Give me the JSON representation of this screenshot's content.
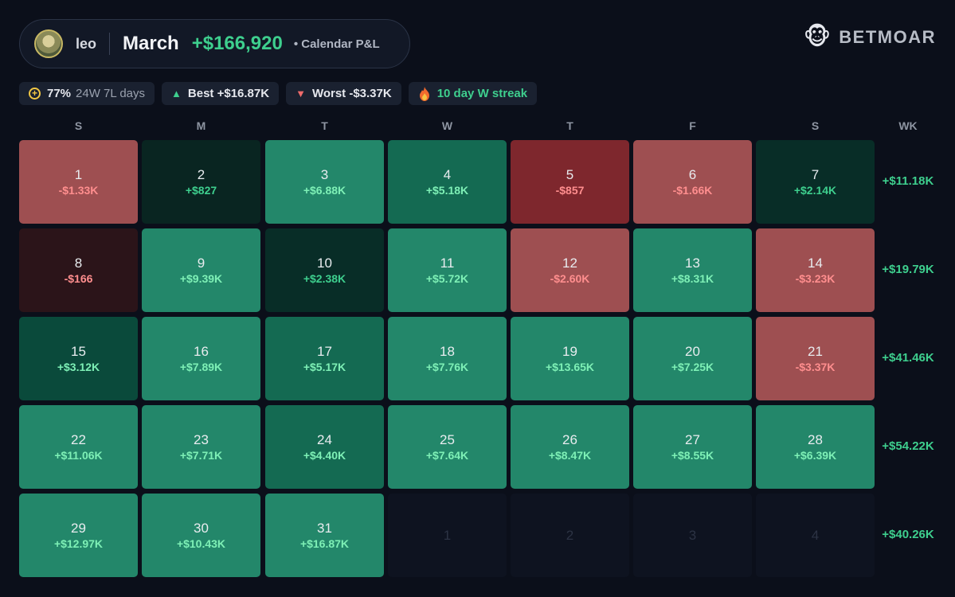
{
  "header": {
    "username": "leo",
    "month": "March",
    "total": "+$166,920",
    "subtitle": "• Calendar P&L"
  },
  "brand": {
    "name": "BETMOAR",
    "icon": "🐵"
  },
  "stats": {
    "winrate_pct": "77%",
    "record": "24W 7L days",
    "best": "Best +$16.87K",
    "worst": "Worst -$3.37K",
    "streak": "10 day W streak"
  },
  "weekdays": [
    "S",
    "M",
    "T",
    "W",
    "T",
    "F",
    "S"
  ],
  "wk_label": "WK",
  "weeks": [
    {
      "total": "+$11.18K",
      "days": [
        {
          "day": "1",
          "pnl": "-$1.33K",
          "tone": "neg",
          "color": "#9e4f51"
        },
        {
          "day": "2",
          "pnl": "+$827",
          "tone": "dim",
          "color": "#092521"
        },
        {
          "day": "3",
          "pnl": "+$6.88K",
          "tone": "pos",
          "color": "#23876a"
        },
        {
          "day": "4",
          "pnl": "+$5.18K",
          "tone": "pos",
          "color": "#146a52"
        },
        {
          "day": "5",
          "pnl": "-$857",
          "tone": "neg",
          "color": "#7e272d"
        },
        {
          "day": "6",
          "pnl": "-$1.66K",
          "tone": "neg",
          "color": "#9e4f51"
        },
        {
          "day": "7",
          "pnl": "+$2.14K",
          "tone": "dim",
          "color": "#082d27"
        }
      ]
    },
    {
      "total": "+$19.79K",
      "days": [
        {
          "day": "8",
          "pnl": "-$166",
          "tone": "neg",
          "color": "#2b1419"
        },
        {
          "day": "9",
          "pnl": "+$9.39K",
          "tone": "pos",
          "color": "#23876a"
        },
        {
          "day": "10",
          "pnl": "+$2.38K",
          "tone": "dim",
          "color": "#082d27"
        },
        {
          "day": "11",
          "pnl": "+$5.72K",
          "tone": "pos",
          "color": "#23876a"
        },
        {
          "day": "12",
          "pnl": "-$2.60K",
          "tone": "neg",
          "color": "#9e4f51"
        },
        {
          "day": "13",
          "pnl": "+$8.31K",
          "tone": "pos",
          "color": "#23876a"
        },
        {
          "day": "14",
          "pnl": "-$3.23K",
          "tone": "neg",
          "color": "#9e4f51"
        }
      ]
    },
    {
      "total": "+$41.46K",
      "days": [
        {
          "day": "15",
          "pnl": "+$3.12K",
          "tone": "pos",
          "color": "#0a4a3b"
        },
        {
          "day": "16",
          "pnl": "+$7.89K",
          "tone": "pos",
          "color": "#23876a"
        },
        {
          "day": "17",
          "pnl": "+$5.17K",
          "tone": "pos",
          "color": "#146a52"
        },
        {
          "day": "18",
          "pnl": "+$7.76K",
          "tone": "pos",
          "color": "#23876a"
        },
        {
          "day": "19",
          "pnl": "+$13.65K",
          "tone": "pos",
          "color": "#23876a"
        },
        {
          "day": "20",
          "pnl": "+$7.25K",
          "tone": "pos",
          "color": "#23876a"
        },
        {
          "day": "21",
          "pnl": "-$3.37K",
          "tone": "neg",
          "color": "#9e4f51"
        }
      ]
    },
    {
      "total": "+$54.22K",
      "days": [
        {
          "day": "22",
          "pnl": "+$11.06K",
          "tone": "pos",
          "color": "#23876a"
        },
        {
          "day": "23",
          "pnl": "+$7.71K",
          "tone": "pos",
          "color": "#23876a"
        },
        {
          "day": "24",
          "pnl": "+$4.40K",
          "tone": "pos",
          "color": "#146a52"
        },
        {
          "day": "25",
          "pnl": "+$7.64K",
          "tone": "pos",
          "color": "#23876a"
        },
        {
          "day": "26",
          "pnl": "+$8.47K",
          "tone": "pos",
          "color": "#23876a"
        },
        {
          "day": "27",
          "pnl": "+$8.55K",
          "tone": "pos",
          "color": "#23876a"
        },
        {
          "day": "28",
          "pnl": "+$6.39K",
          "tone": "pos",
          "color": "#23876a"
        }
      ]
    },
    {
      "total": "+$40.26K",
      "days": [
        {
          "day": "29",
          "pnl": "+$12.97K",
          "tone": "pos",
          "color": "#23876a"
        },
        {
          "day": "30",
          "pnl": "+$10.43K",
          "tone": "pos",
          "color": "#23876a"
        },
        {
          "day": "31",
          "pnl": "+$16.87K",
          "tone": "pos",
          "color": "#23876a"
        },
        {
          "day": "1",
          "pnl": "",
          "tone": "empty",
          "color": ""
        },
        {
          "day": "2",
          "pnl": "",
          "tone": "empty",
          "color": ""
        },
        {
          "day": "3",
          "pnl": "",
          "tone": "empty",
          "color": ""
        },
        {
          "day": "4",
          "pnl": "",
          "tone": "empty",
          "color": ""
        }
      ]
    }
  ]
}
